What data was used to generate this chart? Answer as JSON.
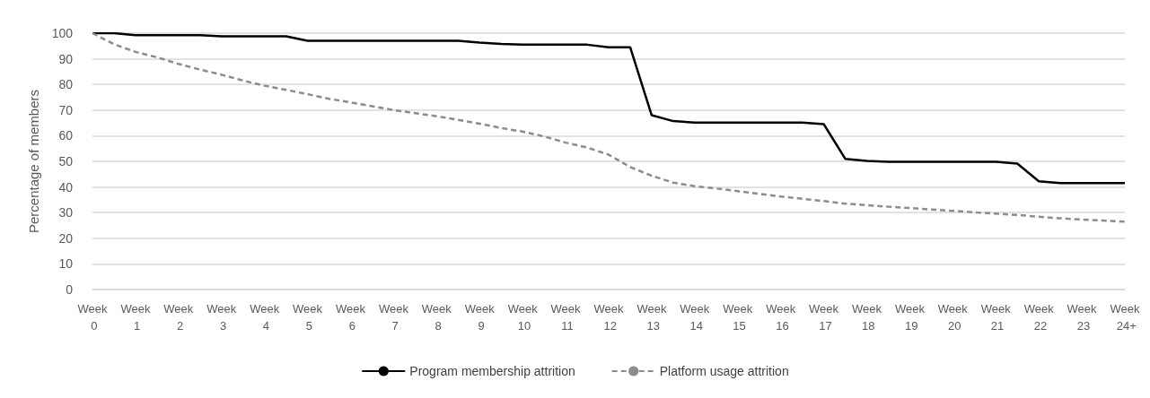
{
  "chart_data": {
    "type": "line",
    "ylabel": "Percentage of members",
    "categories": [
      "Week 0",
      null,
      "Week 1",
      null,
      "Week 2",
      null,
      "Week 3",
      null,
      "Week 4",
      null,
      "Week 5",
      null,
      "Week 6",
      null,
      "Week 7",
      null,
      "Week 8",
      null,
      "Week 9",
      null,
      "Week 10",
      null,
      "Week 11",
      null,
      "Week 12",
      null,
      "Week 13",
      null,
      "Week 14",
      null,
      "Week 15",
      null,
      "Week 16",
      null,
      "Week 17",
      null,
      "Week 18",
      null,
      "Week 19",
      null,
      "Week 20",
      null,
      "Week 21",
      null,
      "Week 22",
      null,
      "Week 23",
      null,
      "Week 24+"
    ],
    "ylim": [
      0,
      100
    ],
    "yticks": [
      0,
      10,
      20,
      30,
      40,
      50,
      60,
      70,
      80,
      90,
      100
    ],
    "grid": "y",
    "legend": "bottom",
    "marker": "none",
    "series": [
      {
        "name": "Program membership attrition",
        "color": "#000000",
        "line_style": "solid",
        "values": [
          100,
          100,
          99.2,
          99.2,
          99.2,
          99.2,
          98.8,
          98.8,
          98.8,
          98.8,
          97,
          97,
          97,
          97,
          97,
          97,
          97,
          97,
          96.3,
          95.8,
          95.5,
          95.5,
          95.5,
          95.5,
          94.5,
          94.5,
          68,
          65.7,
          65.1,
          65.1,
          65.1,
          65.1,
          65.1,
          65.1,
          64.5,
          51,
          50.2,
          49.8,
          49.8,
          49.8,
          49.8,
          49.8,
          49.8,
          49.1,
          42.2,
          41.5,
          41.5,
          41.5,
          41.5
        ]
      },
      {
        "name": "Platform usage attrition",
        "color": "#8c8c8c",
        "line_style": "dashed",
        "values": [
          100,
          95.7,
          92.7,
          90.6,
          88,
          85.8,
          83.8,
          81.5,
          79.5,
          77.9,
          76.2,
          74.4,
          73,
          71.5,
          70,
          68.8,
          67.6,
          66.2,
          64.7,
          63,
          61.6,
          59.7,
          57.3,
          55.4,
          52.6,
          47.8,
          44.4,
          41.7,
          40.3,
          39.4,
          38.4,
          37.3,
          36.3,
          35.4,
          34.5,
          33.5,
          32.9,
          32.3,
          31.8,
          31.2,
          30.7,
          30.1,
          29.6,
          29.1,
          28.4,
          27.8,
          27.3,
          26.9,
          26.5
        ]
      }
    ]
  }
}
